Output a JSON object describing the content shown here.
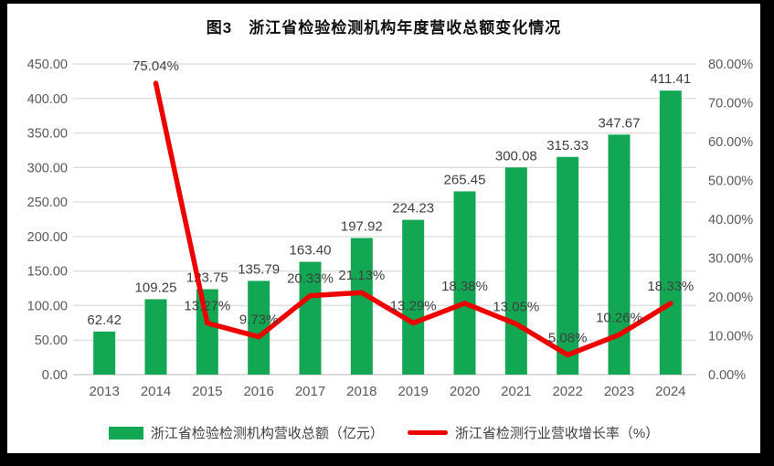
{
  "title": "图3　浙江省检验检测机构年度营收总额变化情况",
  "colors": {
    "bar_green": "#12a853",
    "line_red": "#ee0000",
    "grid": "#dcdcdc",
    "axis_baseline": "#c6c6c6",
    "axis_text": "#595959",
    "label_text": "#3f3f3f",
    "frame_black": "#000000",
    "panel_white": "#ffffff"
  },
  "chart_data": {
    "type": "combo",
    "title": "图3　浙江省检验检测机构年度营收总额变化情况",
    "categories": [
      "2013",
      "2014",
      "2015",
      "2016",
      "2017",
      "2018",
      "2019",
      "2020",
      "2021",
      "2022",
      "2023",
      "2024"
    ],
    "series": [
      {
        "name": "浙江省检验检测机构营收总额（亿元）",
        "type": "bar",
        "color": "#12a853",
        "axis": "left",
        "values": [
          62.42,
          109.25,
          123.75,
          135.79,
          163.4,
          197.92,
          224.23,
          265.45,
          300.08,
          315.33,
          347.67,
          411.41
        ],
        "labels": [
          "62.42",
          "109.25",
          "123.75",
          "135.79",
          "163.40",
          "197.92",
          "224.23",
          "265.45",
          "300.08",
          "315.33",
          "347.67",
          "411.41"
        ]
      },
      {
        "name": "浙江省检测行业营收增长率（%）",
        "type": "line",
        "color": "#ee0000",
        "axis": "right",
        "values": [
          null,
          75.04,
          13.27,
          9.73,
          20.33,
          21.13,
          13.29,
          18.38,
          13.05,
          5.08,
          10.26,
          18.33
        ],
        "labels": [
          null,
          "75.04%",
          "13.27%",
          "9.73%",
          "20.33%",
          "21.13%",
          "13.29%",
          "18.38%",
          "13.05%",
          "5.08%",
          "10.26%",
          "18.33%"
        ]
      }
    ],
    "axes": {
      "left": {
        "min": 0,
        "max": 450,
        "step": 50,
        "tick_labels": [
          "0.00",
          "50.00",
          "100.00",
          "150.00",
          "200.00",
          "250.00",
          "300.00",
          "350.00",
          "400.00",
          "450.00"
        ]
      },
      "right": {
        "min": 0,
        "max": 80,
        "step": 10,
        "tick_labels": [
          "0.00%",
          "10.00%",
          "20.00%",
          "30.00%",
          "40.00%",
          "50.00%",
          "60.00%",
          "70.00%",
          "80.00%"
        ]
      }
    },
    "grid": true,
    "legend_position": "bottom"
  }
}
